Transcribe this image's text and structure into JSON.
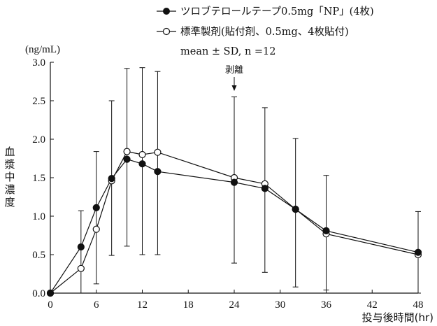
{
  "chart_data": {
    "type": "line",
    "ylabel": "血漿中濃度",
    "yunit": "(ng/mL)",
    "xlabel": "投与後時間(hr)",
    "xlim": [
      0,
      48
    ],
    "ylim": [
      0,
      3.0
    ],
    "xticks": [
      0,
      6,
      12,
      18,
      24,
      30,
      36,
      42,
      48
    ],
    "yticks": [
      "0.0",
      "0.5",
      "1.0",
      "1.5",
      "2.0",
      "2.5",
      "3.0"
    ],
    "legend_position": "top-right",
    "stat_note": "mean ± SD,  n =12",
    "annotation": {
      "text": "剥離",
      "x": 24
    },
    "series": [
      {
        "name": "ツロブテロールテープ0.5mg「NP」(4枚)",
        "marker": "filled-circle",
        "color": "#111111",
        "x": [
          0,
          4,
          6,
          8,
          10,
          12,
          14,
          24,
          28,
          32,
          36,
          48
        ],
        "values": [
          0.0,
          0.6,
          1.11,
          1.49,
          1.74,
          1.68,
          1.58,
          1.44,
          1.36,
          1.09,
          0.81,
          0.53
        ]
      },
      {
        "name": "標準製剤(貼付剤、0.5mg、4枚貼付)",
        "marker": "open-circle",
        "color": "#111111",
        "x": [
          0,
          4,
          6,
          8,
          10,
          12,
          14,
          24,
          28,
          32,
          36,
          48
        ],
        "values": [
          0.0,
          0.32,
          0.83,
          1.46,
          1.84,
          1.8,
          1.83,
          1.5,
          1.42,
          1.09,
          0.77,
          0.5
        ]
      }
    ],
    "error_bars": {
      "x": [
        4,
        6,
        8,
        10,
        12,
        14,
        24,
        28,
        32,
        36,
        48
      ],
      "low": [
        0.0,
        0.12,
        0.49,
        0.61,
        0.5,
        0.5,
        0.39,
        0.27,
        0.08,
        0.04,
        0.0
      ],
      "high": [
        1.07,
        1.84,
        2.5,
        2.92,
        2.93,
        2.88,
        2.55,
        2.41,
        2.01,
        1.53,
        1.06
      ]
    }
  }
}
